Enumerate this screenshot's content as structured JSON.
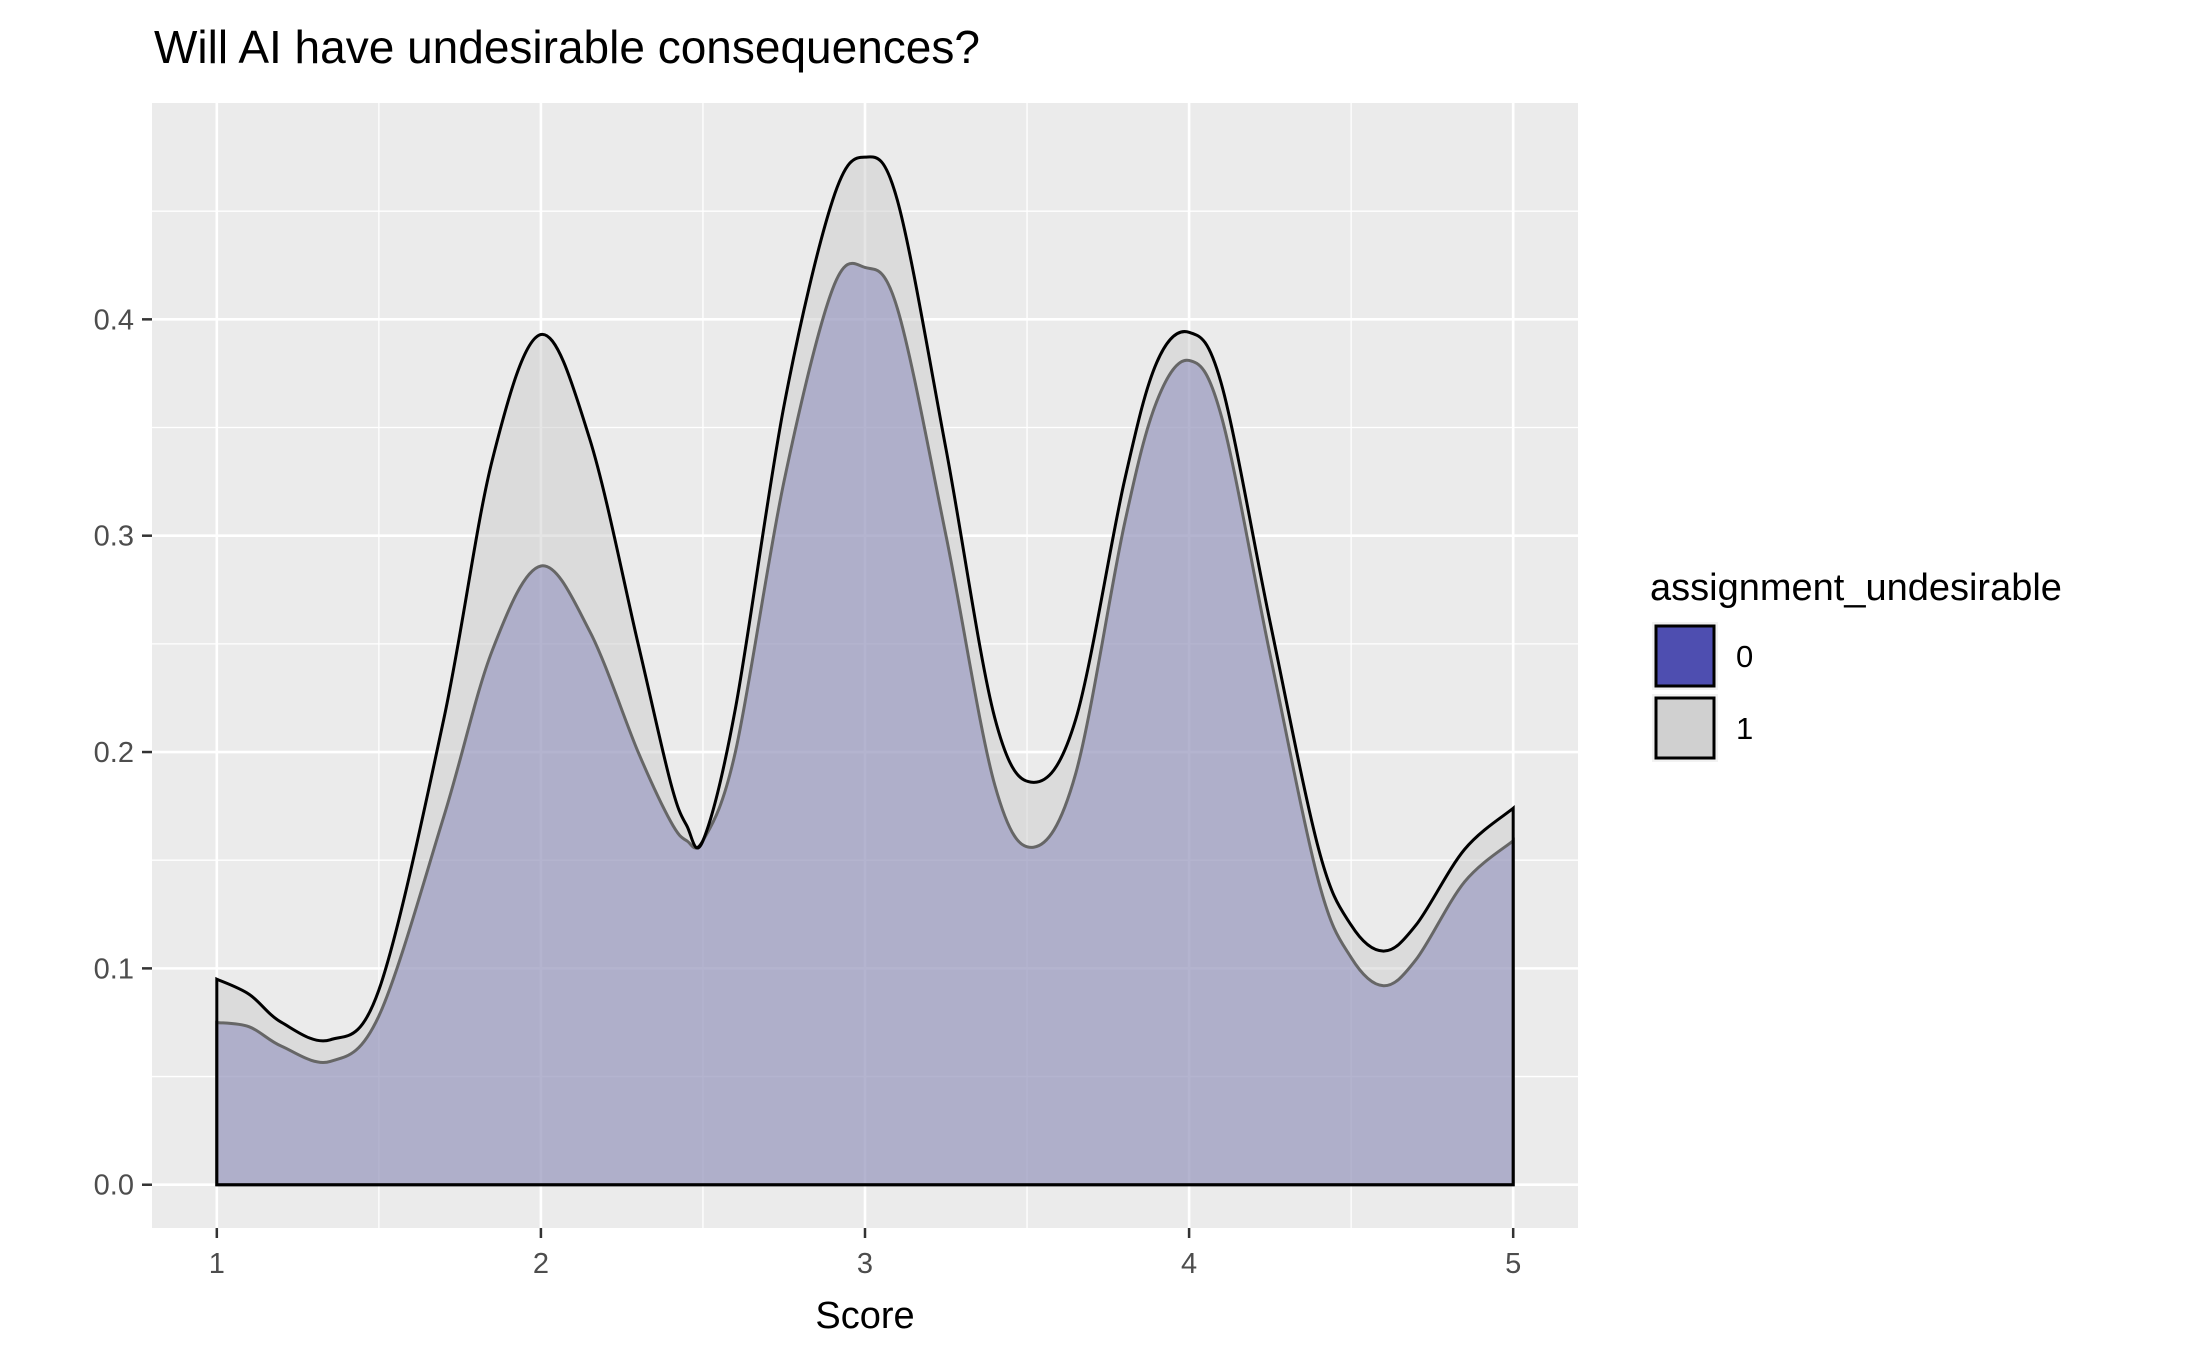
{
  "chart_data": {
    "type": "area",
    "title": "Will AI have undesirable consequences?",
    "xlabel": "Score",
    "ylabel": "",
    "xlim": [
      0.8,
      5.2
    ],
    "ylim": [
      -0.02,
      0.5
    ],
    "x_ticks": [
      1,
      2,
      3,
      4,
      5
    ],
    "x_tick_labels": [
      "1",
      "2",
      "3",
      "4",
      "5"
    ],
    "y_ticks": [
      0.0,
      0.1,
      0.2,
      0.3,
      0.4
    ],
    "y_tick_labels": [
      "0.0",
      "0.1",
      "0.2",
      "0.3",
      "0.4"
    ],
    "grid": true,
    "legend": {
      "title": "assignment_undesirable",
      "position": "right"
    },
    "series": [
      {
        "name": "0",
        "color": "#3c3ca8",
        "x": [
          1.0,
          1.1,
          1.2,
          1.35,
          1.5,
          1.7,
          1.85,
          2.0,
          2.15,
          2.3,
          2.4,
          2.45,
          2.5,
          2.6,
          2.75,
          2.9,
          3.0,
          3.1,
          3.25,
          3.4,
          3.52,
          3.65,
          3.8,
          3.9,
          4.0,
          4.1,
          4.25,
          4.4,
          4.5,
          4.6,
          4.7,
          4.85,
          5.0
        ],
        "values": [
          0.075,
          0.073,
          0.064,
          0.057,
          0.078,
          0.17,
          0.247,
          0.286,
          0.256,
          0.2,
          0.168,
          0.159,
          0.159,
          0.2,
          0.325,
          0.414,
          0.424,
          0.405,
          0.3,
          0.185,
          0.156,
          0.19,
          0.305,
          0.362,
          0.381,
          0.355,
          0.245,
          0.14,
          0.105,
          0.092,
          0.104,
          0.14,
          0.159
        ]
      },
      {
        "name": "1",
        "color": "#cccccc",
        "x": [
          1.0,
          1.1,
          1.2,
          1.35,
          1.5,
          1.7,
          1.85,
          2.0,
          2.15,
          2.3,
          2.4,
          2.45,
          2.5,
          2.6,
          2.75,
          2.9,
          3.0,
          3.1,
          3.25,
          3.4,
          3.52,
          3.65,
          3.8,
          3.9,
          4.0,
          4.1,
          4.25,
          4.4,
          4.5,
          4.6,
          4.7,
          4.85,
          5.0
        ],
        "values": [
          0.095,
          0.088,
          0.075,
          0.067,
          0.09,
          0.215,
          0.335,
          0.393,
          0.345,
          0.25,
          0.186,
          0.166,
          0.159,
          0.22,
          0.36,
          0.455,
          0.475,
          0.455,
          0.34,
          0.216,
          0.186,
          0.215,
          0.325,
          0.38,
          0.394,
          0.37,
          0.26,
          0.155,
          0.12,
          0.108,
          0.12,
          0.155,
          0.174
        ]
      }
    ]
  }
}
